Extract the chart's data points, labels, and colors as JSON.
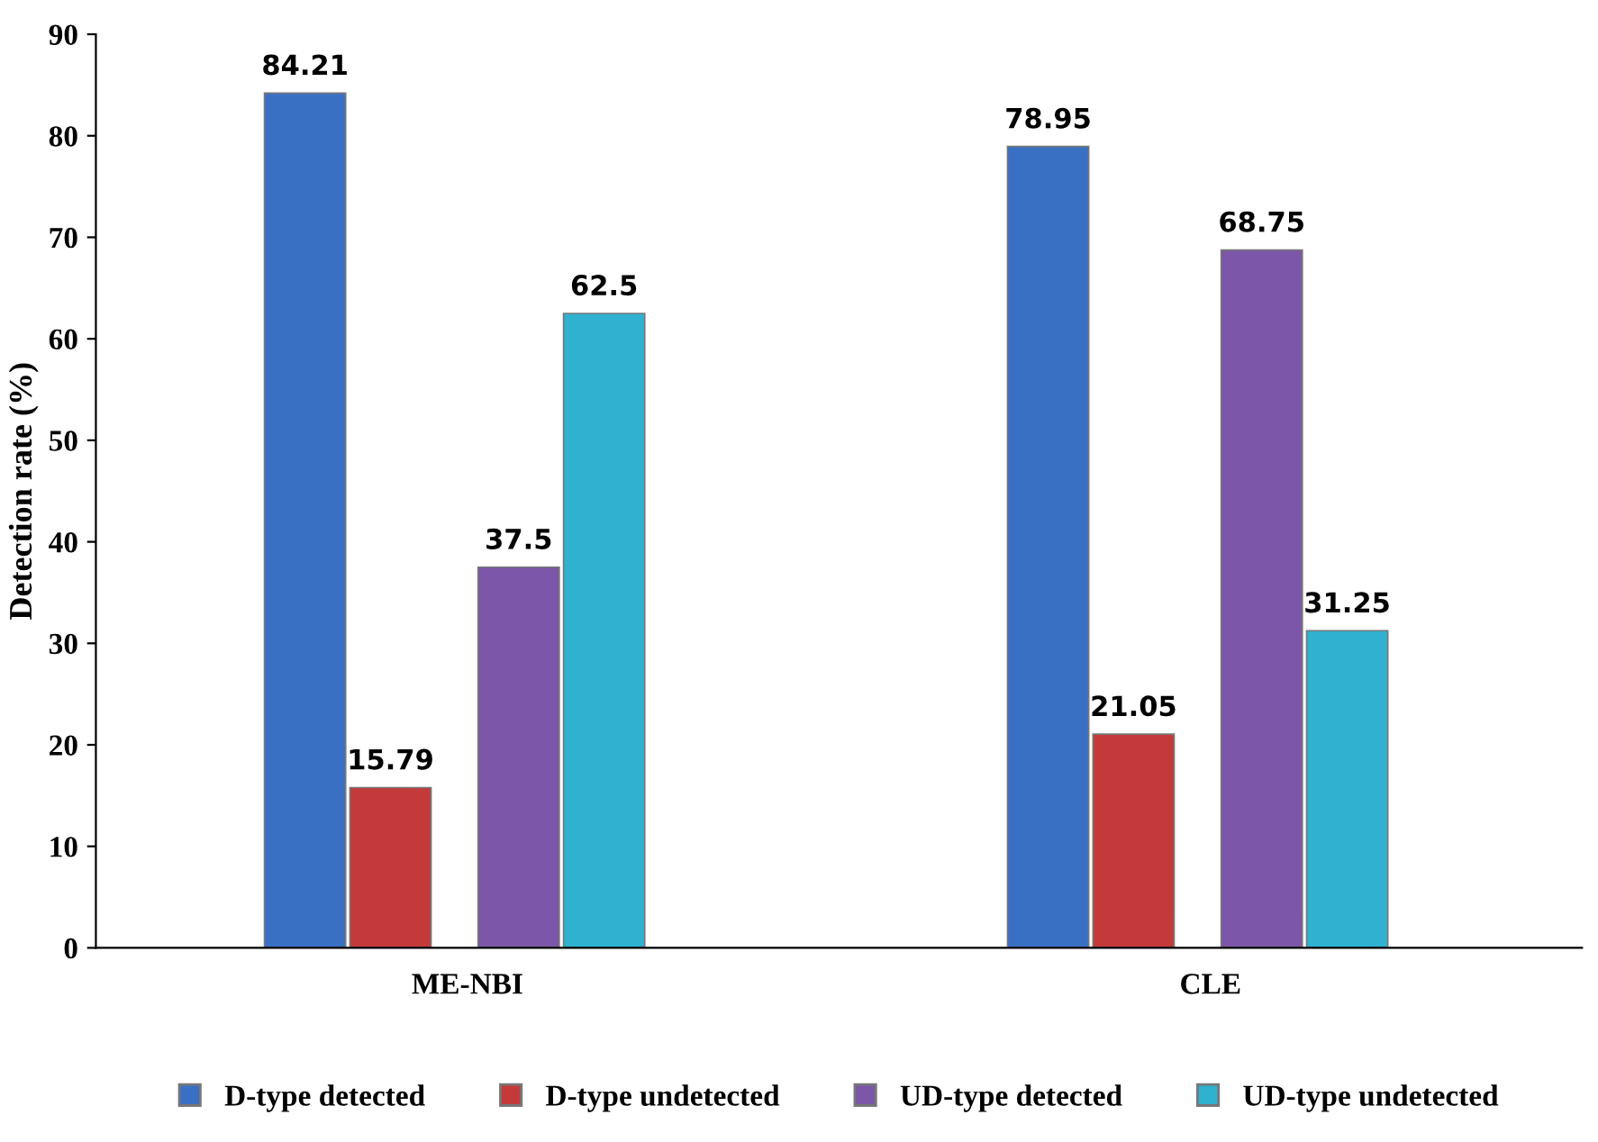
{
  "chart_data": {
    "type": "bar",
    "ylabel": "Detection rate (%)",
    "categories": [
      "ME-NBI",
      "CLE"
    ],
    "series": [
      {
        "name": "D-type detected",
        "color": "#3a70c4",
        "values": [
          84.21,
          78.95
        ]
      },
      {
        "name": "D-type undetected",
        "color": "#c43a3a",
        "values": [
          15.79,
          21.05
        ]
      },
      {
        "name": "UD-type detected",
        "color": "#7c56a8",
        "values": [
          37.5,
          68.75
        ]
      },
      {
        "name": "UD-type undetected",
        "color": "#2fb2d0",
        "values": [
          62.5,
          31.25
        ]
      }
    ],
    "ylim": [
      0,
      90
    ],
    "yticks": [
      0,
      10,
      20,
      30,
      40,
      50,
      60,
      70,
      80,
      90
    ],
    "data_labels": true,
    "grid": false,
    "legend": "bottom"
  }
}
